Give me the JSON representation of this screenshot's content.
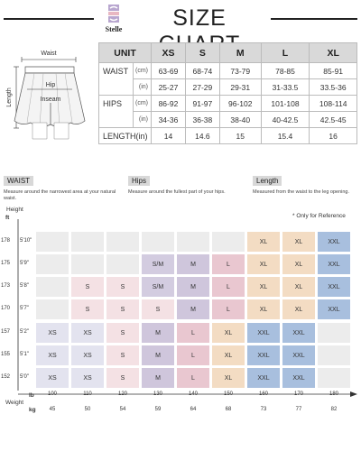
{
  "header": {
    "brand": "Stelle",
    "title": "SIZE CHART"
  },
  "diagram": {
    "waist": "Waist",
    "hip": "Hip",
    "inseam": "Inseam",
    "length": "Length"
  },
  "size_table": {
    "columns": [
      "UNIT",
      "XS",
      "S",
      "M",
      "L",
      "XL"
    ],
    "rows": [
      {
        "label": "WAIST",
        "unit": "(cm)",
        "values": [
          "63-69",
          "68-74",
          "73-79",
          "78-85",
          "85-91"
        ]
      },
      {
        "label": "",
        "unit": "(in)",
        "values": [
          "25-27",
          "27-29",
          "29-31",
          "31-33.5",
          "33.5-36"
        ]
      },
      {
        "label": "HIPS",
        "unit": "(cm)",
        "values": [
          "86-92",
          "91-97",
          "96-102",
          "101-108",
          "108-114"
        ]
      },
      {
        "label": "",
        "unit": "(in)",
        "values": [
          "34-36",
          "36-38",
          "38-40",
          "40-42.5",
          "42.5-45"
        ]
      },
      {
        "label": "LENGTH(in)",
        "unit": "",
        "values": [
          "14",
          "14.6",
          "15",
          "15.4",
          "16"
        ]
      }
    ]
  },
  "notes": [
    {
      "tag": "WAIST",
      "desc": "Measure around the narrowest area at your natural waist."
    },
    {
      "tag": "Hips",
      "desc": "Measure around the fullest part of your hips."
    },
    {
      "tag": "Length",
      "desc": "Measured from the waist to the leg opening."
    }
  ],
  "chart_data": {
    "type": "table",
    "ref_note": "* Only for Reference",
    "y_axis_title": "Height",
    "y_axis_unit": "ft",
    "x_axis_title": "Weight",
    "x_unit_lb": "lb",
    "x_unit_kg": "kg",
    "heights_cm": [
      "178",
      "175",
      "173",
      "170",
      "157",
      "155",
      "152"
    ],
    "heights_ft": [
      "5'10\"",
      "5'9\"",
      "5'8\"",
      "5'7\"",
      "5'2\"",
      "5'1\"",
      "5'0\""
    ],
    "weights_lb": [
      "100",
      "110",
      "120",
      "130",
      "140",
      "150",
      "160",
      "170",
      "180"
    ],
    "weights_kg": [
      "45",
      "50",
      "54",
      "59",
      "64",
      "68",
      "73",
      "77",
      "82"
    ],
    "cells": [
      [
        "",
        "",
        "",
        "",
        "",
        "",
        "XL",
        "XL",
        "XXL"
      ],
      [
        "",
        "",
        "",
        "S/M",
        "M",
        "L",
        "XL",
        "XL",
        "XXL"
      ],
      [
        "",
        "S",
        "S",
        "S/M",
        "M",
        "L",
        "XL",
        "XL",
        "XXL"
      ],
      [
        "",
        "S",
        "S",
        "S",
        "M",
        "L",
        "XL",
        "XL",
        "XXL"
      ],
      [
        "XS",
        "XS",
        "S",
        "M",
        "L",
        "XL",
        "XXL",
        "XXL",
        ""
      ],
      [
        "XS",
        "XS",
        "S",
        "M",
        "L",
        "XL",
        "XXL",
        "XXL",
        ""
      ],
      [
        "XS",
        "XS",
        "S",
        "M",
        "L",
        "XL",
        "XXL",
        "XXL",
        ""
      ]
    ],
    "size_colors": {
      "": "#ececec",
      "XS": "#e3e3ef",
      "S": "#f4e1e4",
      "S/M": "#d3cce0",
      "M": "#cfc6dc",
      "L": "#e9c7d0",
      "XL": "#f3dcc3",
      "XXL": "#a8bfde"
    }
  }
}
